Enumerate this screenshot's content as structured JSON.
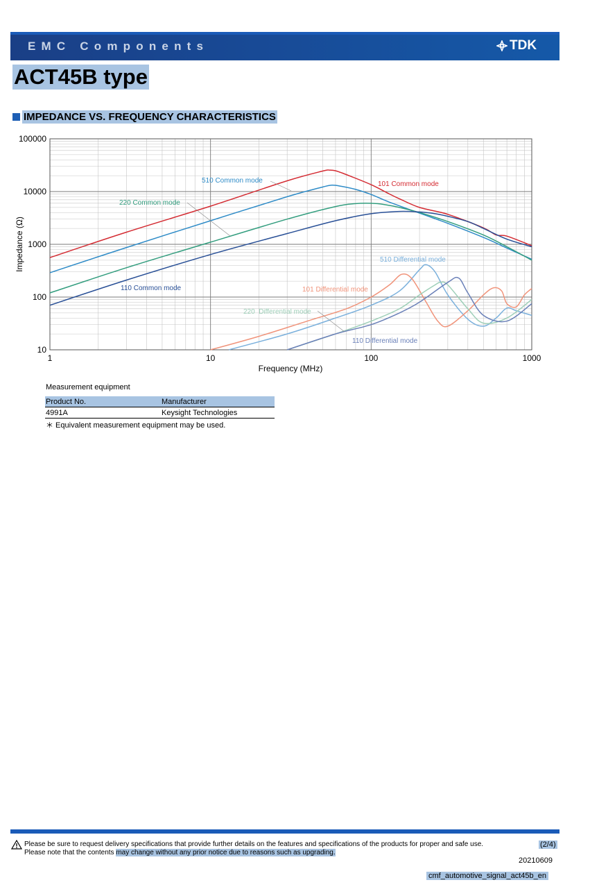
{
  "header": {
    "title": "EMC Components",
    "brand": "TDK"
  },
  "product_title": "ACT45B type",
  "section_title": "IMPEDANCE VS. FREQUENCY CHARACTERISTICS",
  "colors": {
    "brand_blue": "#1a4a94",
    "highlight": "#a8c4e2"
  },
  "chart_data": {
    "type": "line",
    "xlabel": "Frequency (MHz)",
    "ylabel": "Impedance (Ω)",
    "x_scale": "log",
    "y_scale": "log",
    "xlim": [
      1,
      1000
    ],
    "ylim": [
      10,
      100000
    ],
    "x_ticks": [
      "1",
      "10",
      "100",
      "1000"
    ],
    "y_ticks": [
      "10",
      "100",
      "1000",
      "10000",
      "100000"
    ],
    "grid": true,
    "series": [
      {
        "name": "510 Common mode",
        "color": "#2e8bc7",
        "x": [
          1,
          3,
          10,
          30,
          50,
          57,
          65,
          80,
          100,
          130,
          200,
          300,
          500,
          700,
          1000
        ],
        "y": [
          290,
          870,
          2800,
          8000,
          12200,
          13200,
          12600,
          11000,
          8800,
          6300,
          3900,
          2500,
          1350,
          850,
          520
        ]
      },
      {
        "name": "101 Common mode",
        "color": "#d42b32",
        "x": [
          1,
          3,
          10,
          30,
          50,
          55,
          60,
          70,
          100,
          130,
          150,
          200,
          300,
          500,
          600,
          700,
          1000
        ],
        "y": [
          560,
          1700,
          5300,
          16000,
          24500,
          25500,
          24800,
          21000,
          13500,
          9000,
          7300,
          5000,
          3700,
          2050,
          1500,
          1430,
          940
        ]
      },
      {
        "name": "220 Common mode",
        "color": "#329d7e",
        "x": [
          1,
          3,
          10,
          30,
          60,
          80,
          100,
          120,
          150,
          200,
          300,
          500,
          700,
          1000
        ],
        "y": [
          120,
          360,
          1100,
          3000,
          5200,
          5900,
          6000,
          5700,
          5000,
          4000,
          2700,
          1500,
          900,
          500
        ]
      },
      {
        "name": "110 Common mode",
        "color": "#284f96",
        "x": [
          1,
          3,
          10,
          30,
          60,
          100,
          150,
          200,
          250,
          300,
          400,
          500,
          700,
          1000
        ],
        "y": [
          70,
          210,
          640,
          1600,
          2800,
          3800,
          4200,
          4100,
          3800,
          3400,
          2700,
          2000,
          1250,
          900
        ]
      },
      {
        "name": "510 Differential mode",
        "color": "#7ab0dc",
        "x": [
          13,
          30,
          60,
          100,
          150,
          200,
          220,
          250,
          300,
          400,
          500,
          600,
          700,
          800,
          1000
        ],
        "y": [
          10,
          20,
          40,
          70,
          130,
          330,
          410,
          300,
          110,
          38,
          28,
          40,
          62,
          55,
          45
        ]
      },
      {
        "name": "101 Differential mode",
        "color": "#f0937a",
        "x": [
          10,
          20,
          40,
          70,
          100,
          130,
          155,
          180,
          220,
          260,
          300,
          400,
          500,
          580,
          650,
          700,
          800,
          900,
          1000
        ],
        "y": [
          10,
          18,
          35,
          60,
          100,
          170,
          270,
          220,
          80,
          35,
          28,
          55,
          110,
          150,
          130,
          75,
          65,
          110,
          145
        ]
      },
      {
        "name": "220 Differential mode",
        "color": "#9ecfb8",
        "x": [
          30,
          60,
          100,
          150,
          200,
          250,
          270,
          300,
          400,
          500,
          700,
          1000
        ],
        "y": [
          10,
          20,
          35,
          60,
          110,
          170,
          190,
          170,
          60,
          32,
          40,
          90
        ]
      },
      {
        "name": "110 Differential mode",
        "color": "#6a80b8",
        "x": [
          30,
          60,
          100,
          150,
          200,
          300,
          350,
          400,
          500,
          700,
          1000
        ],
        "y": [
          10,
          20,
          30,
          50,
          80,
          190,
          230,
          120,
          45,
          35,
          75
        ]
      }
    ],
    "annotations": [
      "510 Common mode",
      "101 Common mode",
      "220 Common mode",
      "110 Common mode",
      "510 Differential mode",
      "101 Differential mode",
      "220  Differential mode",
      "110 Differential mode"
    ]
  },
  "measurement": {
    "title": "Measurement equipment",
    "columns": [
      "Product No.",
      "Manufacturer"
    ],
    "rows": [
      [
        "4991A",
        "Keysight Technologies"
      ]
    ],
    "note": "＊ Equivalent measurement equipment may be used."
  },
  "footer": {
    "line1": "Please be sure to request delivery specifications that provide further details on the features and specifications of the products for proper and safe use.",
    "line2_prefix": "Please note that the contents ",
    "line2_highlight": "may change without any prior notice due to reasons such as upgrading.",
    "page": "(2/4)",
    "date": "20210609",
    "file": "cmf_automotive_signal_act45b_en",
    "warning_icon": "warning-triangle-icon"
  }
}
